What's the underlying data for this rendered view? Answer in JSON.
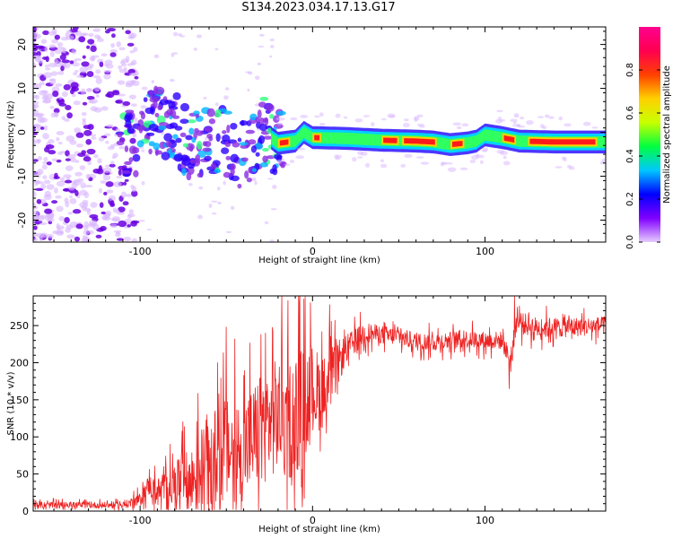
{
  "title": "S134.2023.034.17.13.G17",
  "colors": {
    "snr_line": "#ee2222",
    "scatter_faint": "#d9b6ff",
    "scatter_dark": "#6a00e0",
    "band_core": "#ff1a1a"
  },
  "chart_data": [
    {
      "type": "heatmap",
      "title": "",
      "xlabel": "Height of straight line (km)",
      "ylabel": "Frequency (Hz)",
      "xlim": [
        -162,
        170
      ],
      "ylim": [
        -25,
        24
      ],
      "xticks": [
        -100,
        0,
        100
      ],
      "yticks": [
        -20,
        -10,
        0,
        10,
        20
      ],
      "colorbar": {
        "label": "Normalized spectral amplitude",
        "range": [
          0,
          1
        ],
        "ticks": [
          "0.0",
          "0.2",
          "0.4",
          "0.6",
          "0.8"
        ],
        "colors": [
          "#e6ccff",
          "#8000ff",
          "#0000ff",
          "#00c8ff",
          "#00ff40",
          "#c8ff00",
          "#ffd000",
          "#ff4000",
          "#ff0050",
          "#ff0090"
        ]
      },
      "band_centerline": [
        [
          -110,
          -3
        ],
        [
          -100,
          -1
        ],
        [
          -90,
          3
        ],
        [
          -80,
          1
        ],
        [
          -70,
          -3
        ],
        [
          -60,
          -3
        ],
        [
          -50,
          -2
        ],
        [
          -40,
          -5
        ],
        [
          -30,
          0
        ],
        [
          -25,
          -1
        ],
        [
          -20,
          -2.5
        ],
        [
          -10,
          -2
        ],
        [
          -5,
          0
        ],
        [
          0,
          -1.2
        ],
        [
          20,
          -1.4
        ],
        [
          40,
          -1.8
        ],
        [
          60,
          -2.0
        ],
        [
          70,
          -2.2
        ],
        [
          80,
          -2.8
        ],
        [
          90,
          -2.4
        ],
        [
          95,
          -2.0
        ],
        [
          100,
          -0.6
        ],
        [
          110,
          -1.2
        ],
        [
          120,
          -2.0
        ],
        [
          140,
          -2.2
        ],
        [
          170,
          -2.2
        ]
      ],
      "band_strong_segments": [
        [
          -20,
          -13
        ],
        [
          0,
          5
        ],
        [
          40,
          50
        ],
        [
          52,
          72
        ],
        [
          80,
          88
        ],
        [
          110,
          118
        ],
        [
          125,
          165
        ]
      ]
    },
    {
      "type": "line",
      "title": "",
      "xlabel": "Height of straight line (km)",
      "ylabel": "SNR (10 * v/v)",
      "xlim": [
        -162,
        170
      ],
      "ylim": [
        0,
        290
      ],
      "xticks": [
        -100,
        0,
        100
      ],
      "yticks": [
        0,
        50,
        100,
        150,
        200,
        250
      ],
      "series": [
        {
          "trend": [
            [
              -162,
              8
            ],
            [
              -110,
              8
            ],
            [
              -100,
              15
            ],
            [
              -95,
              35
            ],
            [
              -90,
              25
            ],
            [
              -80,
              35
            ],
            [
              -70,
              40
            ],
            [
              -60,
              70
            ],
            [
              -50,
              80
            ],
            [
              -40,
              85
            ],
            [
              -30,
              110
            ],
            [
              -20,
              130
            ],
            [
              -15,
              120
            ],
            [
              -10,
              130
            ],
            [
              -5,
              150
            ],
            [
              0,
              165
            ],
            [
              5,
              160
            ],
            [
              10,
              170
            ],
            [
              15,
              200
            ],
            [
              20,
              220
            ],
            [
              30,
              240
            ],
            [
              40,
              238
            ],
            [
              50,
              235
            ],
            [
              60,
              228
            ],
            [
              70,
              228
            ],
            [
              80,
              230
            ],
            [
              90,
              232
            ],
            [
              100,
              230
            ],
            [
              110,
              230
            ],
            [
              115,
              200
            ],
            [
              118,
              255
            ],
            [
              130,
              247
            ],
            [
              150,
              248
            ],
            [
              170,
              250
            ]
          ],
          "noise_envelope": [
            [
              -162,
              7
            ],
            [
              -110,
              7
            ],
            [
              -100,
              15
            ],
            [
              -80,
              50
            ],
            [
              -60,
              110
            ],
            [
              -40,
              120
            ],
            [
              -20,
              130
            ],
            [
              -10,
              140
            ],
            [
              0,
              100
            ],
            [
              10,
              70
            ],
            [
              20,
              30
            ],
            [
              40,
              20
            ],
            [
              110,
              20
            ],
            [
              120,
              25
            ],
            [
              170,
              20
            ]
          ],
          "spikes": [
            [
              -8,
              290
            ],
            [
              10,
              278
            ],
            [
              -50,
              248
            ],
            [
              -45,
              232
            ],
            [
              -30,
              238
            ],
            [
              -23,
              243
            ],
            [
              -18,
              225
            ],
            [
              -55,
              200
            ],
            [
              117,
              290
            ],
            [
              114,
              165
            ],
            [
              8,
              105
            ]
          ]
        }
      ]
    }
  ]
}
